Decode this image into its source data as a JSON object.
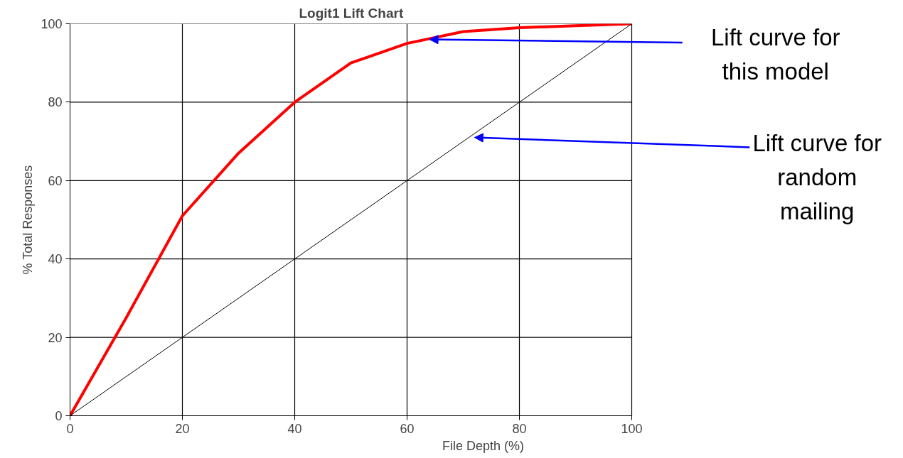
{
  "chart_data": {
    "type": "line",
    "title": "Logit1 Lift Chart",
    "xlabel": "File Depth (%)",
    "ylabel": "% Total Responses",
    "xlim": [
      0,
      100
    ],
    "ylim": [
      0,
      100
    ],
    "xticks": [
      0,
      20,
      40,
      60,
      80,
      100
    ],
    "yticks": [
      0,
      20,
      40,
      60,
      80,
      100
    ],
    "grid": true,
    "marker": "none",
    "line_style": "solid",
    "series": [
      {
        "color": "#ff0000",
        "x": [
          0,
          10,
          20,
          30,
          40,
          50,
          60,
          70,
          80,
          90,
          100
        ],
        "values": [
          0,
          25,
          51,
          67,
          80,
          90,
          95,
          98,
          99,
          99.5,
          100
        ]
      },
      {
        "color": "#000000",
        "x": [
          0,
          100
        ],
        "values": [
          0,
          100
        ]
      }
    ],
    "annotations": [
      {
        "text": "Lift curve for\nthis model",
        "x": 64,
        "y": 96
      },
      {
        "text": "Lift curve for\nrandom\nmailing",
        "x": 72,
        "y": 71
      }
    ]
  }
}
